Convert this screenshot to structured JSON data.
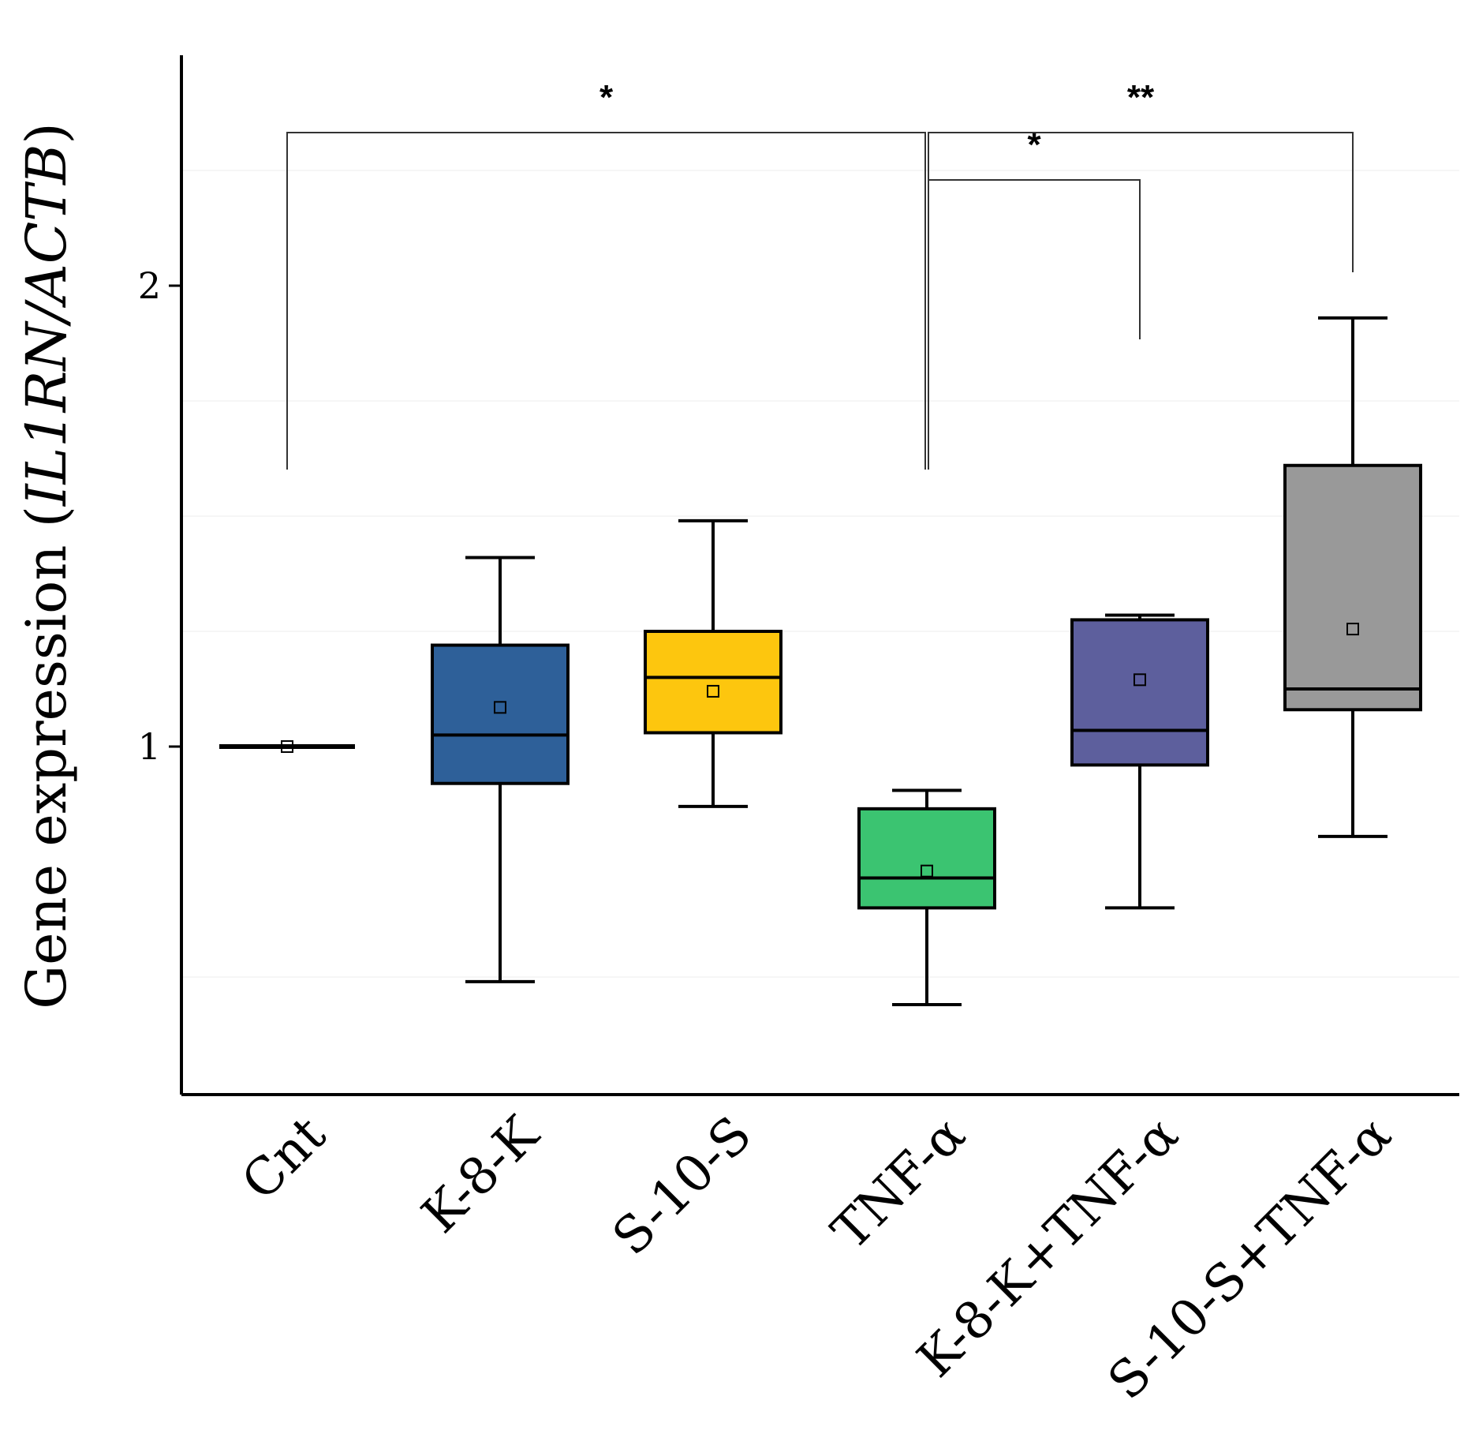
{
  "chart_data": {
    "type": "box",
    "ylabel_prefix": "Gene expression (",
    "ylabel_gene": "IL1RN/ACTB",
    "ylabel_suffix": ")",
    "yticks": [
      1,
      2
    ],
    "ylim": [
      0.25,
      2.5
    ],
    "categories": [
      "Cnt",
      "K-8-K",
      "S-10-S",
      "TNF-α",
      "K-8-K+TNF-α",
      "S-10-S+TNF-α"
    ],
    "boxes": [
      {
        "name": "Cnt",
        "color": "#000000",
        "whisker_low": 1.0,
        "q1": 1.0,
        "median": 1.0,
        "q3": 1.0,
        "whisker_high": 1.0,
        "mean": 1.0
      },
      {
        "name": "K-8-K",
        "color": "#2E6099",
        "whisker_low": 0.49,
        "q1": 0.92,
        "median": 1.025,
        "q3": 1.22,
        "whisker_high": 1.41,
        "mean": 1.085
      },
      {
        "name": "S-10-S",
        "color": "#FDC60E",
        "whisker_low": 0.87,
        "q1": 1.03,
        "median": 1.15,
        "q3": 1.25,
        "whisker_high": 1.49,
        "mean": 1.12
      },
      {
        "name": "TNF-α",
        "color": "#3BC471",
        "whisker_low": 0.44,
        "q1": 0.65,
        "median": 0.715,
        "q3": 0.865,
        "whisker_high": 0.905,
        "mean": 0.73
      },
      {
        "name": "K-8-K+TNF-α",
        "color": "#5D5F9D",
        "whisker_low": 0.65,
        "q1": 0.96,
        "median": 1.035,
        "q3": 1.275,
        "whisker_high": 1.285,
        "mean": 1.145
      },
      {
        "name": "S-10-S+TNF-α",
        "color": "#999999",
        "whisker_low": 0.805,
        "q1": 1.08,
        "median": 1.125,
        "q3": 1.61,
        "whisker_high": 1.93,
        "mean": 1.255
      }
    ],
    "significance": [
      {
        "from": "Cnt",
        "to": "TNF-α",
        "label": "*"
      },
      {
        "from": "TNF-α",
        "to": "K-8-K+TNF-α",
        "label": "*"
      },
      {
        "from": "TNF-α",
        "to": "S-10-S+TNF-α",
        "label": "**"
      }
    ]
  }
}
